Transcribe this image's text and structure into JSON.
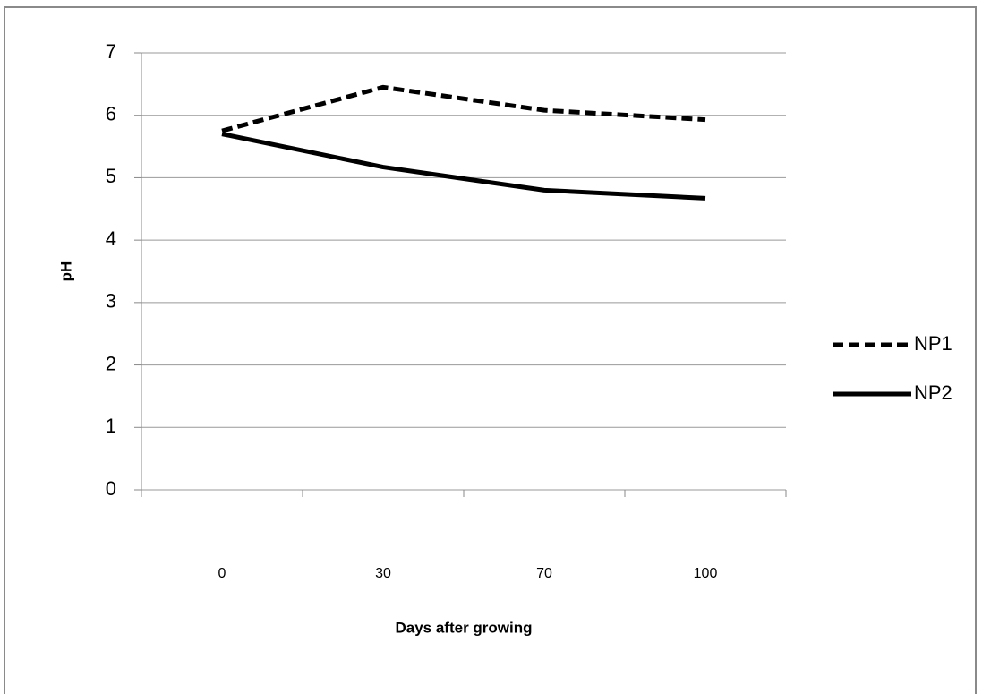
{
  "chart_data": {
    "type": "line",
    "x_label": "Days after growing",
    "y_label": "pH",
    "categories": [
      "0",
      "30",
      "70",
      "100"
    ],
    "series": [
      {
        "name": "NP1",
        "color": "#000000",
        "dashed": true,
        "values": [
          5.75,
          6.45,
          6.08,
          5.93
        ]
      },
      {
        "name": "NP2",
        "color": "#000000",
        "dashed": false,
        "values": [
          5.7,
          5.17,
          4.8,
          4.67
        ]
      }
    ],
    "ylim": [
      0,
      7
    ],
    "yticks": [
      0,
      1,
      2,
      3,
      4,
      5,
      6,
      7
    ],
    "grid": true,
    "legend": "right"
  }
}
